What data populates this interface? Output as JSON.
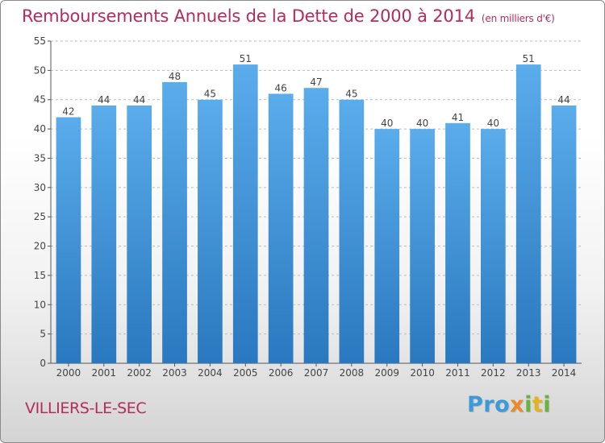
{
  "header": {
    "title": "Remboursements Annuels de la Dette de 2000 à 2014",
    "unit": "(en milliers d'€)"
  },
  "footer": {
    "place": "VILLIERS-LE-SEC",
    "logo": "Proxiti"
  },
  "colors": {
    "title": "#b42c5a",
    "bar_top": "#5aaceb",
    "bar_bottom": "#2a78bf"
  },
  "chart_data": {
    "type": "bar",
    "title": "Remboursements Annuels de la Dette de 2000 à 2014",
    "subtitle": "(en milliers d'€)",
    "xlabel": "",
    "ylabel": "",
    "categories": [
      "2000",
      "2001",
      "2002",
      "2003",
      "2004",
      "2005",
      "2006",
      "2007",
      "2008",
      "2009",
      "2010",
      "2011",
      "2012",
      "2013",
      "2014"
    ],
    "values": [
      42,
      44,
      44,
      48,
      45,
      51,
      46,
      47,
      45,
      40,
      40,
      41,
      40,
      51,
      44
    ],
    "ylim": [
      0,
      55
    ],
    "yticks": [
      0,
      5,
      10,
      15,
      20,
      25,
      30,
      35,
      40,
      45,
      50,
      55
    ],
    "grid": true,
    "legend": "none"
  }
}
